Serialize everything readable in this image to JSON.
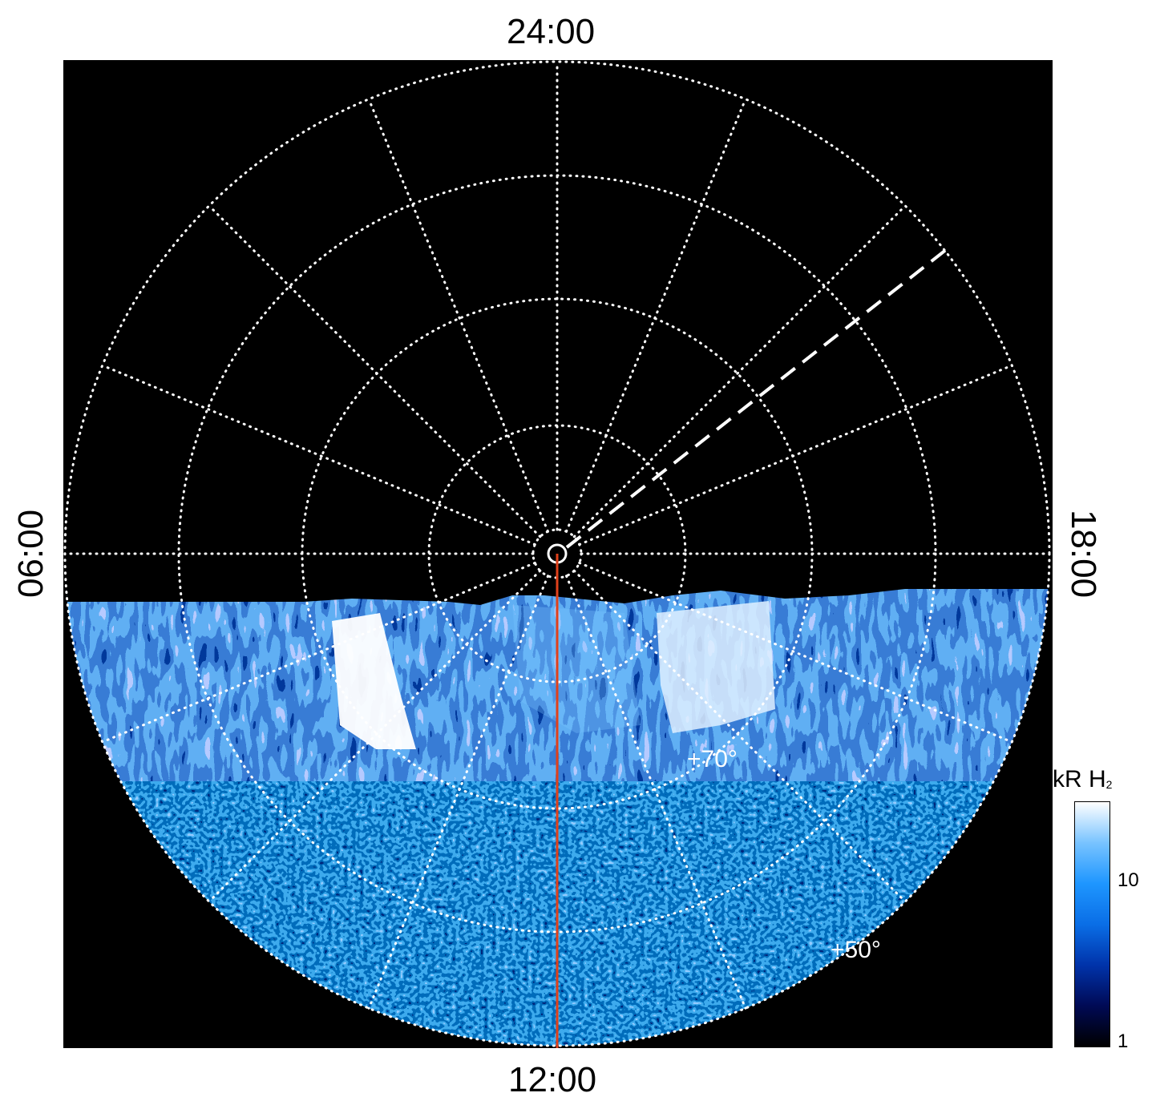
{
  "figure": {
    "local_time_labels": {
      "top": "24:00",
      "bottom": "12:00",
      "left": "06:00",
      "right": "18:00"
    },
    "latitude_labels": [
      "+70°",
      "+50°"
    ],
    "colorbar": {
      "title_main": "kR H",
      "title_sub": "2",
      "scale": "log",
      "ticks": [
        "10",
        "1"
      ],
      "colors": [
        "#000000",
        "#000a55",
        "#0033aa",
        "#0a6ee6",
        "#1e96ff",
        "#78c3ff",
        "#ffffff"
      ]
    },
    "colors": {
      "background": "#000000",
      "grid": "#ffffff",
      "meridian_line": "#e0401a"
    }
  }
}
